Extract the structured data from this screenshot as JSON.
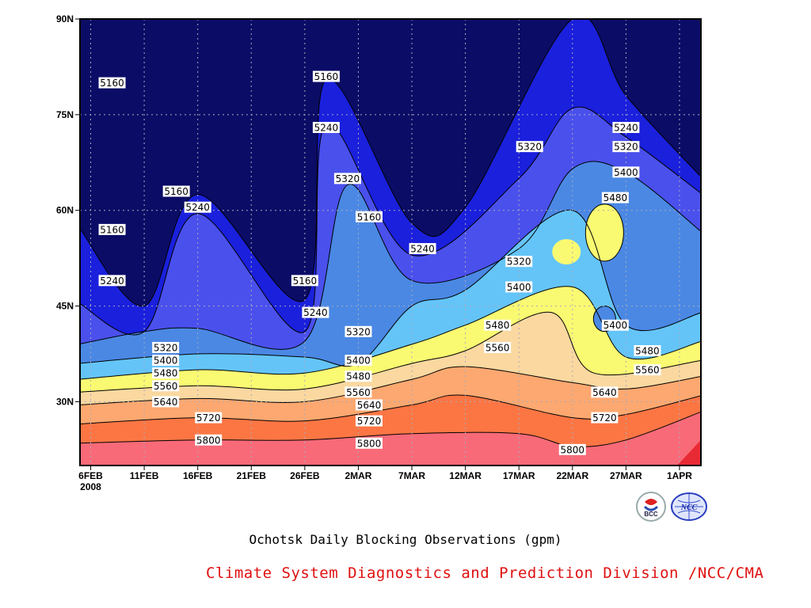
{
  "chart_data": {
    "type": "heatmap",
    "subtype": "filled-contour time-latitude section",
    "title": "Ochotsk Daily Blocking Observations (gpm)",
    "credit": "Climate System Diagnostics and Prediction Division /NCC/CMA",
    "x_ticks": [
      "6FEB",
      "11FEB",
      "16FEB",
      "21FEB",
      "26FEB",
      "2MAR",
      "7MAR",
      "12MAR",
      "17MAR",
      "22MAR",
      "27MAR",
      "1APR"
    ],
    "x_year_label": "2008",
    "y_ticks": [
      "30N",
      "45N",
      "60N",
      "75N",
      "90N"
    ],
    "xlim": [
      "5FEB",
      "3APR"
    ],
    "ylim": [
      20,
      90
    ],
    "grid": "dotted",
    "contour_levels": [
      5160,
      5240,
      5320,
      5400,
      5480,
      5560,
      5640,
      5720,
      5800
    ],
    "contour_fill_colors": [
      "#0b0c66",
      "#1a20dc",
      "#4a50ec",
      "#4a88e4",
      "#64c4f8",
      "#fafa72",
      "#fad8a0",
      "#fca870",
      "#fc7644",
      "#f86a78",
      "#e82a34"
    ],
    "series": [
      {
        "name": "5800",
        "x": [
          "5FEB",
          "16FEB",
          "26FEB",
          "7MAR",
          "17MAR",
          "22MAR",
          "27MAR",
          "3APR"
        ],
        "y": [
          23.5,
          24.0,
          24.0,
          25.0,
          25.0,
          23.0,
          24.0,
          28.5
        ]
      },
      {
        "name": "5720",
        "x": [
          "5FEB",
          "16FEB",
          "26FEB",
          "7MAR",
          "12MAR",
          "22MAR",
          "27MAR",
          "3APR"
        ],
        "y": [
          26.5,
          27.5,
          27.0,
          29.5,
          31.0,
          27.5,
          28.0,
          31.0
        ]
      },
      {
        "name": "5640",
        "x": [
          "5FEB",
          "16FEB",
          "26FEB",
          "7MAR",
          "12MAR",
          "22MAR",
          "27MAR",
          "3APR"
        ],
        "y": [
          29.5,
          30.5,
          30.0,
          33.5,
          35.5,
          33.0,
          32.0,
          34.0
        ]
      },
      {
        "name": "5560",
        "x": [
          "5FEB",
          "16FEB",
          "26FEB",
          "7MAR",
          "12MAR",
          "20MAR",
          "24MAR",
          "3APR"
        ],
        "y": [
          31.5,
          32.5,
          32.0,
          36.0,
          38.0,
          44.0,
          34.5,
          36.5
        ]
      },
      {
        "name": "5480",
        "x": [
          "5FEB",
          "16FEB",
          "26FEB",
          "7MAR",
          "12MAR",
          "22MAR",
          "27MAR",
          "3APR"
        ],
        "y": [
          33.5,
          35.0,
          34.5,
          39.0,
          42.0,
          48.0,
          37.0,
          39.5
        ]
      },
      {
        "name": "5400",
        "x": [
          "5FEB",
          "16FEB",
          "26FEB",
          "2MAR",
          "7MAR",
          "12MAR",
          "22MAR",
          "27MAR",
          "3APR"
        ],
        "y": [
          36.0,
          37.5,
          37.0,
          36.0,
          45.0,
          47.5,
          60.0,
          42.0,
          44.0
        ]
      },
      {
        "name": "5320",
        "x": [
          "5FEB",
          "11FEB",
          "16FEB",
          "26FEB",
          "1MAR",
          "7MAR",
          "17MAR",
          "22MAR",
          "27MAR",
          "3APR"
        ],
        "y": [
          39.0,
          41.0,
          41.5,
          39.5,
          64.0,
          49.0,
          54.0,
          66.5,
          66.0,
          56.5
        ]
      },
      {
        "name": "5240",
        "x": [
          "5FEB",
          "11FEB",
          "16FEB",
          "26FEB",
          "28FEB",
          "7MAR",
          "17MAR",
          "22MAR",
          "27MAR",
          "3APR"
        ],
        "y": [
          45.5,
          41.0,
          59.5,
          41.0,
          73.5,
          53.0,
          65.0,
          76.0,
          71.5,
          62.5
        ]
      },
      {
        "name": "5160",
        "x": [
          "5FEB",
          "11FEB",
          "16FEB",
          "26FEB",
          "28FEB",
          "7MAR",
          "12MAR",
          "22MAR",
          "27MAR",
          "3APR"
        ],
        "y": [
          57.5,
          45.0,
          62.5,
          46.0,
          80.5,
          58.0,
          60.5,
          90.0,
          78.0,
          65.0
        ]
      }
    ],
    "inline_labels": [
      "5160",
      "5160",
      "5160",
      "5160",
      "5160",
      "5160",
      "5240",
      "5240",
      "5240",
      "5240",
      "5240",
      "5240",
      "5320",
      "5320",
      "5320",
      "5320",
      "5320",
      "5320",
      "5400",
      "5400",
      "5400",
      "5400",
      "5400",
      "5480",
      "5480",
      "5480",
      "5480",
      "5480",
      "5560",
      "5560",
      "5560",
      "5560",
      "5640",
      "5640",
      "5640",
      "5720",
      "5720",
      "5720",
      "5800",
      "5800",
      "5800"
    ]
  },
  "logos": {
    "bcc": {
      "name": "bcc-logo",
      "text": "BCC"
    },
    "ncc": {
      "name": "ncc-logo",
      "text": "NCC"
    }
  }
}
